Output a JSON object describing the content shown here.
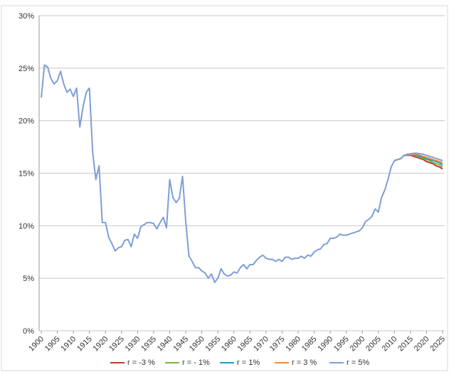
{
  "chart_data": {
    "type": "line",
    "x": [
      1900,
      1901,
      1902,
      1903,
      1904,
      1905,
      1906,
      1907,
      1908,
      1909,
      1910,
      1911,
      1912,
      1913,
      1914,
      1915,
      1916,
      1917,
      1918,
      1919,
      1920,
      1921,
      1922,
      1923,
      1924,
      1925,
      1926,
      1927,
      1928,
      1929,
      1930,
      1931,
      1932,
      1933,
      1934,
      1935,
      1936,
      1937,
      1938,
      1939,
      1940,
      1941,
      1942,
      1943,
      1944,
      1945,
      1946,
      1947,
      1948,
      1949,
      1950,
      1951,
      1952,
      1953,
      1954,
      1955,
      1956,
      1957,
      1958,
      1959,
      1960,
      1961,
      1962,
      1963,
      1964,
      1965,
      1966,
      1967,
      1968,
      1969,
      1970,
      1971,
      1972,
      1973,
      1974,
      1975,
      1976,
      1977,
      1978,
      1979,
      1980,
      1981,
      1982,
      1983,
      1984,
      1985,
      1986,
      1987,
      1988,
      1989,
      1990,
      1991,
      1992,
      1993,
      1994,
      1995,
      1996,
      1997,
      1998,
      1999,
      2000,
      2001,
      2002,
      2003,
      2004,
      2005,
      2006,
      2007,
      2008,
      2009,
      2010,
      2011,
      2012,
      2013,
      2014,
      2015,
      2016,
      2017,
      2018,
      2019,
      2020,
      2021,
      2022,
      2023,
      2024,
      2025
    ],
    "series": [
      {
        "name": "r = -3 %",
        "color": "#c0392b",
        "values": [
          null,
          null,
          null,
          null,
          null,
          null,
          null,
          null,
          null,
          null,
          null,
          null,
          null,
          null,
          null,
          null,
          null,
          null,
          null,
          null,
          null,
          null,
          null,
          null,
          null,
          null,
          null,
          null,
          null,
          null,
          null,
          null,
          null,
          null,
          null,
          null,
          null,
          null,
          null,
          null,
          null,
          null,
          null,
          null,
          null,
          null,
          null,
          null,
          null,
          null,
          null,
          null,
          null,
          null,
          null,
          null,
          null,
          null,
          null,
          null,
          null,
          null,
          null,
          null,
          null,
          null,
          null,
          null,
          null,
          null,
          null,
          null,
          null,
          null,
          null,
          null,
          null,
          null,
          null,
          null,
          null,
          null,
          null,
          null,
          null,
          null,
          null,
          null,
          null,
          null,
          null,
          null,
          null,
          null,
          null,
          null,
          null,
          null,
          null,
          null,
          null,
          null,
          null,
          null,
          null,
          null,
          null,
          null,
          null,
          null,
          16.2,
          16.3,
          16.4,
          16.7,
          16.7,
          16.7,
          16.6,
          16.5,
          16.4,
          16.3,
          16.1,
          16.0,
          15.9,
          15.7,
          15.6,
          15.4
        ]
      },
      {
        "name": "r = - 1%",
        "color": "#7cb342",
        "values": [
          null,
          null,
          null,
          null,
          null,
          null,
          null,
          null,
          null,
          null,
          null,
          null,
          null,
          null,
          null,
          null,
          null,
          null,
          null,
          null,
          null,
          null,
          null,
          null,
          null,
          null,
          null,
          null,
          null,
          null,
          null,
          null,
          null,
          null,
          null,
          null,
          null,
          null,
          null,
          null,
          null,
          null,
          null,
          null,
          null,
          null,
          null,
          null,
          null,
          null,
          null,
          null,
          null,
          null,
          null,
          null,
          null,
          null,
          null,
          null,
          null,
          null,
          null,
          null,
          null,
          null,
          null,
          null,
          null,
          null,
          null,
          null,
          null,
          null,
          null,
          null,
          null,
          null,
          null,
          null,
          null,
          null,
          null,
          null,
          null,
          null,
          null,
          null,
          null,
          null,
          null,
          null,
          null,
          null,
          null,
          null,
          null,
          null,
          null,
          null,
          null,
          null,
          null,
          null,
          null,
          null,
          null,
          null,
          null,
          null,
          16.2,
          16.3,
          16.4,
          16.7,
          16.7,
          16.75,
          16.7,
          16.6,
          16.5,
          16.4,
          16.3,
          16.2,
          16.0,
          15.9,
          15.8,
          15.6
        ]
      },
      {
        "name": "r = 1%",
        "color": "#1f9bc4",
        "values": [
          null,
          null,
          null,
          null,
          null,
          null,
          null,
          null,
          null,
          null,
          null,
          null,
          null,
          null,
          null,
          null,
          null,
          null,
          null,
          null,
          null,
          null,
          null,
          null,
          null,
          null,
          null,
          null,
          null,
          null,
          null,
          null,
          null,
          null,
          null,
          null,
          null,
          null,
          null,
          null,
          null,
          null,
          null,
          null,
          null,
          null,
          null,
          null,
          null,
          null,
          null,
          null,
          null,
          null,
          null,
          null,
          null,
          null,
          null,
          null,
          null,
          null,
          null,
          null,
          null,
          null,
          null,
          null,
          null,
          null,
          null,
          null,
          null,
          null,
          null,
          null,
          null,
          null,
          null,
          null,
          null,
          null,
          null,
          null,
          null,
          null,
          null,
          null,
          null,
          null,
          null,
          null,
          null,
          null,
          null,
          null,
          null,
          null,
          null,
          null,
          null,
          null,
          null,
          null,
          null,
          null,
          null,
          null,
          null,
          null,
          16.2,
          16.3,
          16.4,
          16.7,
          16.75,
          16.8,
          16.75,
          16.7,
          16.6,
          16.5,
          16.4,
          16.3,
          16.2,
          16.1,
          16.0,
          15.8
        ]
      },
      {
        "name": "r = 3 %",
        "color": "#f08a3c",
        "values": [
          null,
          null,
          null,
          null,
          null,
          null,
          null,
          null,
          null,
          null,
          null,
          null,
          null,
          null,
          null,
          null,
          null,
          null,
          null,
          null,
          null,
          null,
          null,
          null,
          null,
          null,
          null,
          null,
          null,
          null,
          null,
          null,
          null,
          null,
          null,
          null,
          null,
          null,
          null,
          null,
          null,
          null,
          null,
          null,
          null,
          null,
          null,
          null,
          null,
          null,
          null,
          null,
          null,
          null,
          null,
          null,
          null,
          null,
          null,
          null,
          null,
          null,
          null,
          null,
          null,
          null,
          null,
          null,
          null,
          null,
          null,
          null,
          null,
          null,
          null,
          null,
          null,
          null,
          null,
          null,
          null,
          null,
          null,
          null,
          null,
          null,
          null,
          null,
          null,
          null,
          null,
          null,
          null,
          null,
          null,
          null,
          null,
          null,
          null,
          null,
          null,
          null,
          null,
          null,
          null,
          null,
          null,
          null,
          null,
          null,
          16.2,
          16.3,
          16.4,
          16.7,
          16.8,
          16.8,
          16.8,
          16.8,
          16.7,
          16.6,
          16.5,
          16.4,
          16.3,
          16.2,
          16.1,
          16.0
        ]
      },
      {
        "name": "r = 5%",
        "color": "#7f9ed6",
        "values": [
          22.2,
          25.3,
          25.1,
          24.0,
          23.5,
          23.8,
          24.7,
          23.5,
          22.7,
          23.0,
          22.3,
          23.1,
          19.4,
          21.3,
          22.7,
          23.1,
          17.0,
          14.4,
          15.7,
          10.3,
          10.3,
          8.9,
          8.3,
          7.6,
          7.9,
          8.0,
          8.6,
          8.7,
          8.0,
          9.2,
          8.8,
          9.9,
          10.1,
          10.3,
          10.3,
          10.2,
          9.7,
          10.3,
          10.8,
          9.8,
          14.4,
          12.7,
          12.2,
          12.6,
          14.7,
          10.4,
          7.1,
          6.6,
          6.0,
          6.0,
          5.7,
          5.5,
          5.0,
          5.4,
          4.6,
          5.0,
          5.9,
          5.4,
          5.2,
          5.3,
          5.6,
          5.5,
          6.0,
          6.3,
          5.9,
          6.3,
          6.3,
          6.7,
          7.0,
          7.2,
          6.9,
          6.8,
          6.8,
          6.6,
          6.8,
          6.6,
          7.0,
          7.0,
          6.8,
          6.9,
          6.9,
          7.1,
          6.9,
          7.2,
          7.1,
          7.5,
          7.7,
          7.8,
          8.2,
          8.3,
          8.8,
          8.8,
          8.9,
          9.2,
          9.1,
          9.1,
          9.2,
          9.3,
          9.4,
          9.5,
          9.8,
          10.4,
          10.6,
          10.9,
          11.6,
          11.3,
          12.7,
          13.4,
          14.4,
          15.6,
          16.2,
          16.3,
          16.4,
          16.7,
          16.8,
          16.85,
          16.9,
          16.9,
          16.85,
          16.8,
          16.7,
          16.6,
          16.5,
          16.4,
          16.3,
          16.2
        ]
      }
    ],
    "xlim": [
      1900,
      2025
    ],
    "xticks": [
      1900,
      1905,
      1910,
      1915,
      1920,
      1925,
      1930,
      1935,
      1940,
      1945,
      1950,
      1955,
      1960,
      1965,
      1970,
      1975,
      1980,
      1985,
      1990,
      1995,
      2000,
      2005,
      2010,
      2015,
      2020,
      2025
    ],
    "ylim": [
      0,
      30
    ],
    "yticks": [
      {
        "value": 0,
        "label": "0%"
      },
      {
        "value": 5,
        "label": "5%"
      },
      {
        "value": 10,
        "label": "10%"
      },
      {
        "value": 15,
        "label": "15%"
      },
      {
        "value": 20,
        "label": "20%"
      },
      {
        "value": 25,
        "label": "25%"
      },
      {
        "value": 30,
        "label": "30%"
      }
    ],
    "grid": true,
    "legend": "bottom"
  }
}
